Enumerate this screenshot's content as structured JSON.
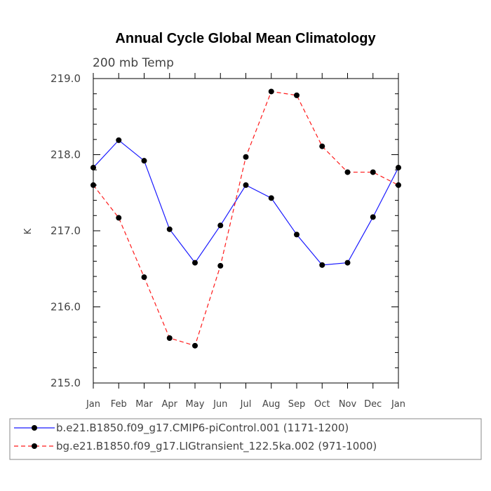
{
  "chart_data": {
    "type": "line",
    "title": "Annual Cycle Global Mean Climatology",
    "subtitle": "200 mb Temp",
    "ylabel": "K",
    "xlabel": "",
    "categories": [
      "Jan",
      "Feb",
      "Mar",
      "Apr",
      "May",
      "Jun",
      "Jul",
      "Aug",
      "Sep",
      "Oct",
      "Nov",
      "Dec",
      "Jan"
    ],
    "ylim": [
      215.0,
      219.0
    ],
    "yticks": [
      215.0,
      216.0,
      217.0,
      218.0,
      219.0
    ],
    "ytick_labels": [
      "215.0",
      "216.0",
      "217.0",
      "218.0",
      "219.0"
    ],
    "series": [
      {
        "name": "b.e21.B1850.f09_g17.CMIP6-piControl.001 (1171-1200)",
        "color": "#1a1aff",
        "dash": "solid",
        "values": [
          217.83,
          218.19,
          217.92,
          217.02,
          216.58,
          217.07,
          217.6,
          217.43,
          216.95,
          216.55,
          216.58,
          217.18,
          217.83
        ]
      },
      {
        "name": "bg.e21.B1850.f09_g17.LIGtransient_122.5ka.002 (971-1000)",
        "color": "#ff1a1a",
        "dash": "dashed",
        "values": [
          217.6,
          217.17,
          216.39,
          215.59,
          215.49,
          216.54,
          217.97,
          218.83,
          218.78,
          218.11,
          217.77,
          217.77,
          217.6
        ]
      }
    ],
    "legend_position": "bottom"
  }
}
